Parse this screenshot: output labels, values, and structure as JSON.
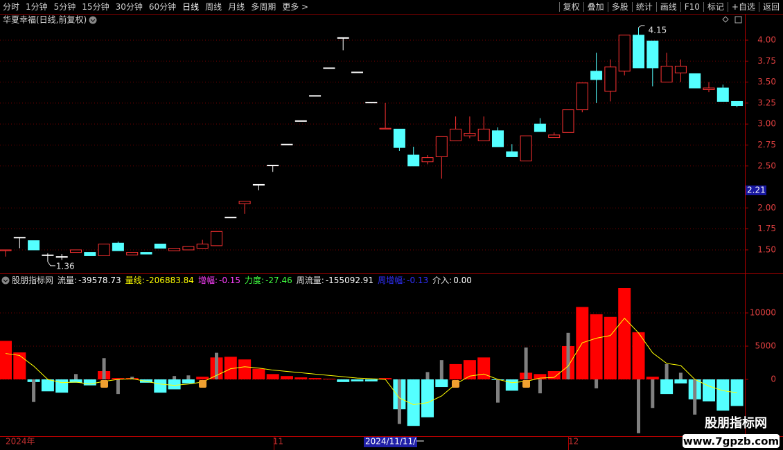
{
  "toolbar": {
    "left": [
      "分时",
      "1分钟",
      "5分钟",
      "15分钟",
      "30分钟",
      "60分钟",
      "日线",
      "周线",
      "月线",
      "多周期",
      "更多 >"
    ],
    "right": [
      "复权",
      "叠加",
      "多股",
      "统计",
      "画线",
      "F10",
      "标记",
      "+自选",
      "返回"
    ]
  },
  "watermark": {
    "name": "股朋指标网",
    "url": "www.7gpzb.com"
  },
  "chart_data": [
    {
      "type": "candlestick",
      "title": "华夏幸福(日线,前复权)",
      "categories": [
        "2024年",
        null,
        null,
        null,
        null,
        null,
        null,
        null,
        null,
        null,
        null,
        null,
        null,
        null,
        null,
        null,
        null,
        null,
        null,
        "11",
        null,
        null,
        null,
        null,
        null,
        null,
        null,
        null,
        null,
        null,
        null,
        null,
        null,
        null,
        null,
        null,
        null,
        null,
        null,
        null,
        "12",
        null,
        null,
        null,
        null,
        null,
        null,
        null,
        null,
        null,
        null,
        null,
        null
      ],
      "open": [
        1.49,
        1.65,
        1.61,
        1.44,
        1.42,
        1.47,
        1.47,
        1.43,
        1.58,
        1.44,
        1.47,
        1.57,
        1.49,
        1.5,
        1.52,
        1.55,
        1.89,
        2.05,
        2.28,
        2.51,
        2.76,
        3.04,
        3.34,
        3.67,
        4.03,
        3.62,
        3.26,
        2.94,
        2.94,
        2.63,
        2.55,
        2.61,
        2.8,
        2.86,
        2.8,
        2.92,
        2.67,
        2.56,
        3.0,
        2.84,
        2.9,
        3.17,
        3.63,
        3.39,
        3.63,
        4.06,
        3.99,
        3.5,
        3.61,
        3.6,
        3.41,
        3.43,
        3.27
      ],
      "high": [
        1.5,
        1.65,
        1.61,
        1.46,
        1.45,
        1.5,
        1.47,
        1.57,
        1.6,
        1.47,
        1.47,
        1.57,
        1.52,
        1.54,
        1.62,
        1.72,
        1.89,
        2.08,
        2.28,
        2.51,
        2.76,
        3.04,
        3.34,
        3.67,
        4.03,
        3.62,
        3.26,
        3.25,
        2.94,
        2.73,
        2.63,
        2.85,
        3.09,
        3.09,
        3.09,
        2.96,
        2.76,
        2.86,
        3.07,
        2.9,
        3.17,
        3.49,
        3.85,
        3.77,
        4.06,
        4.15,
        3.99,
        3.85,
        3.77,
        3.6,
        3.5,
        3.47,
        3.27
      ],
      "low": [
        1.42,
        1.52,
        1.5,
        1.36,
        1.38,
        1.47,
        1.43,
        1.43,
        1.49,
        1.44,
        1.45,
        1.52,
        1.49,
        1.5,
        1.52,
        1.55,
        1.89,
        1.93,
        2.21,
        2.43,
        2.76,
        3.04,
        3.34,
        3.67,
        3.88,
        3.62,
        3.26,
        2.94,
        2.68,
        2.5,
        2.52,
        2.35,
        2.8,
        2.83,
        2.8,
        2.73,
        2.61,
        2.56,
        2.91,
        2.84,
        2.9,
        3.14,
        3.25,
        3.27,
        3.58,
        3.67,
        3.45,
        3.5,
        3.5,
        3.43,
        3.38,
        3.27,
        3.2
      ],
      "close": [
        1.5,
        1.65,
        1.5,
        1.44,
        1.42,
        1.5,
        1.43,
        1.57,
        1.49,
        1.47,
        1.45,
        1.52,
        1.52,
        1.54,
        1.57,
        1.72,
        1.89,
        2.08,
        2.28,
        2.51,
        2.76,
        3.04,
        3.34,
        3.67,
        4.03,
        3.62,
        3.26,
        2.95,
        2.72,
        2.5,
        2.6,
        2.85,
        2.94,
        2.89,
        2.94,
        2.73,
        2.61,
        2.86,
        2.91,
        2.87,
        3.17,
        3.49,
        3.53,
        3.68,
        4.06,
        3.67,
        3.67,
        3.69,
        3.69,
        3.43,
        3.43,
        3.27,
        3.22
      ],
      "up_color": "#ff3232",
      "down_color": "#54ffff",
      "flat_color": "#ffffff",
      "ylim": [
        1.219,
        4.165
      ],
      "yticks": [
        {
          "value": 1.5,
          "label": "1.50"
        },
        {
          "value": 1.75,
          "label": "1.75"
        },
        {
          "value": 2,
          "label": "2.00"
        },
        {
          "value": 2.5,
          "label": "2.50"
        },
        {
          "value": 2.75,
          "label": "2.75"
        },
        {
          "value": 3,
          "label": "3.00"
        },
        {
          "value": 3.25,
          "label": "3.25"
        },
        {
          "value": 3.5,
          "label": "3.50"
        },
        {
          "value": 3.75,
          "label": "3.75"
        },
        {
          "value": 4,
          "label": "4.00"
        }
      ],
      "grid": true,
      "current_price": 2.21,
      "max_label": 4.15,
      "min_label": 1.36
    },
    {
      "type": "bar",
      "title": "股朋指标网",
      "legend": [
        {
          "name": "流量:",
          "value": -39578.73,
          "color": "#ffffff"
        },
        {
          "name": "量线:",
          "value": -206883.84,
          "color": "#ffff00"
        },
        {
          "name": "增幅:",
          "value": -0.15,
          "color": "#ff40ff"
        },
        {
          "name": "力度:",
          "value": -27.46,
          "color": "#40ff40"
        },
        {
          "name": "周流量:",
          "value": -155092.91,
          "color": "#ffffff"
        },
        {
          "name": "周增幅:",
          "value": -0.13,
          "color": "#3030ff"
        },
        {
          "name": "介入:",
          "value": {
            "value": 0,
            "label": "0.00"
          },
          "color": "#ffffff"
        }
      ],
      "series": [
        {
          "style": "bar",
          "color": "#ff0000",
          "color_negative": "#54ffff",
          "values": [
            5800,
            4060,
            -400,
            -1800,
            -2000,
            -500,
            -900,
            1250,
            200,
            200,
            -500,
            -2000,
            -1500,
            -600,
            400,
            3300,
            3400,
            3000,
            1600,
            800,
            500,
            300,
            200,
            100,
            -400,
            -300,
            -300,
            200,
            -4500,
            -7000,
            -5700,
            -1150,
            2300,
            2900,
            3300,
            -100,
            -1700,
            1000,
            800,
            1250,
            5000,
            10900,
            9800,
            9400,
            13750,
            7100,
            400,
            -2200,
            -600,
            -3000,
            -3300,
            -4700,
            -4000
          ]
        },
        {
          "style": "thin-bar",
          "color": "#808080",
          "values": [
            null,
            null,
            -3400,
            null,
            null,
            800,
            null,
            3200,
            -2200,
            400,
            null,
            null,
            500,
            600,
            null,
            4000,
            null,
            null,
            null,
            null,
            null,
            null,
            null,
            null,
            null,
            null,
            null,
            null,
            -6700,
            null,
            1100,
            2900,
            null,
            null,
            null,
            -3500,
            null,
            4800,
            -2100,
            null,
            7000,
            null,
            -1350,
            null,
            null,
            -8100,
            -4300,
            2300,
            1000,
            -5300,
            null,
            null,
            null
          ]
        },
        {
          "style": "line",
          "color": "#ffff00",
          "values": [
            3900,
            3600,
            2000,
            0,
            -500,
            -400,
            -700,
            -300,
            0,
            100,
            -300,
            -700,
            -900,
            -700,
            -400,
            600,
            1600,
            1900,
            1700,
            1400,
            1200,
            1000,
            800,
            600,
            400,
            200,
            100,
            0,
            -2800,
            -3800,
            -3500,
            -2500,
            -700,
            500,
            800,
            0,
            -500,
            -300,
            200,
            300,
            2000,
            5500,
            6200,
            6600,
            9200,
            7000,
            4000,
            2400,
            2100,
            0,
            -1000,
            -1700,
            -2000
          ]
        }
      ],
      "ylim": [
        -8542,
        15625
      ],
      "yticks": [
        0,
        5000,
        10000
      ],
      "grid": true,
      "cursor_date": "2024/11/11/一"
    }
  ]
}
